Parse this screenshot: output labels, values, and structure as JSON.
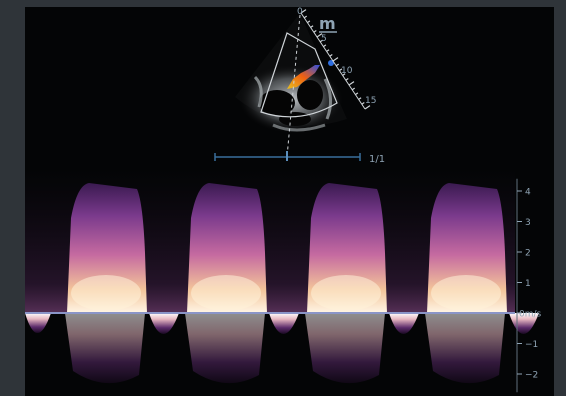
{
  "echo": {
    "depth_labels": [
      "0",
      "5",
      "10",
      "15"
    ],
    "probe_marker": "m",
    "frame_counter": "1/1"
  },
  "doppler": {
    "unit": "m/s",
    "scale_labels": [
      "4",
      "3",
      "2",
      "1",
      "0m/s",
      "1",
      "2"
    ],
    "scale_values": [
      4,
      3,
      2,
      1,
      0,
      -1,
      -2
    ],
    "cycle_count": 4
  },
  "colors": {
    "background": "#040506",
    "frame": "#2f3439",
    "label": "#8fa4b4",
    "baseline": "#8a95c8"
  }
}
